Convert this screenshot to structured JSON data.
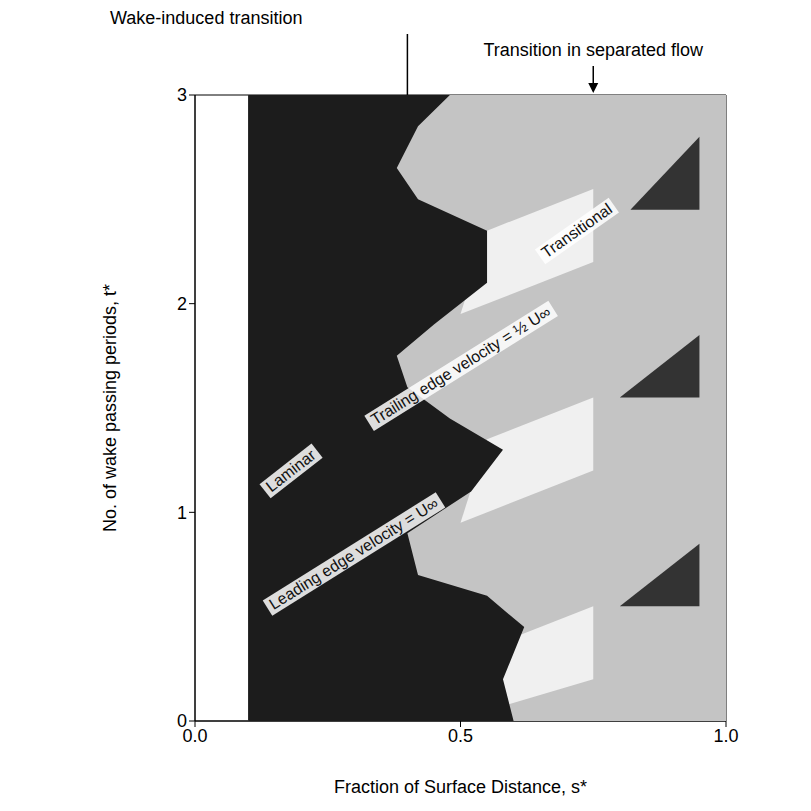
{
  "chart_data": {
    "type": "contour",
    "xlabel": "Fraction of Surface Distance, s*",
    "ylabel": "No. of wake passing periods, t*",
    "xlim": [
      0,
      1
    ],
    "xticks": [
      {
        "value": 0,
        "label": "0.0"
      },
      {
        "value": 0.5,
        "label": "0.5"
      },
      {
        "value": 1,
        "label": "1.0"
      }
    ],
    "ylim": [
      0,
      3
    ],
    "yticks": [
      0,
      1,
      2,
      3
    ],
    "grid": false,
    "markers": [
      {
        "text": "Wake-induced transition",
        "s": 0.4,
        "line_style": "solid"
      },
      {
        "text": "Transition in separated flow",
        "s": 0.75,
        "line_style": "dashed"
      }
    ],
    "annotations": [
      "Laminar",
      "Trailing edge velocity = ½ U∞",
      "Leading edge velocity = U∞",
      "Transitional"
    ],
    "regions": [
      {
        "color": "#c4c4c4",
        "s": [
          0.1,
          1,
          1,
          0.1
        ],
        "t": [
          0,
          0,
          3,
          3
        ]
      },
      {
        "color": "#f0f0f0",
        "s": [
          0.55,
          0.75,
          0.75,
          0.6
        ],
        "t": [
          0.05,
          0.2,
          0.55,
          0.4
        ]
      },
      {
        "color": "#f0f0f0",
        "s": [
          0.5,
          0.75,
          0.75,
          0.55
        ],
        "t": [
          0.95,
          1.2,
          1.55,
          1.35
        ]
      },
      {
        "color": "#f0f0f0",
        "s": [
          0.5,
          0.75,
          0.75,
          0.55
        ],
        "t": [
          1.95,
          2.2,
          2.55,
          2.35
        ]
      },
      {
        "color": "#1c1c1c",
        "s": [
          0.1,
          0.6,
          0.58,
          0.62,
          0.55,
          0.42,
          0.4,
          0.52,
          0.58,
          0.48,
          0.4,
          0.38,
          0.45,
          0.55,
          0.55,
          0.42,
          0.38,
          0.42,
          0.48,
          0.1
        ],
        "t": [
          0,
          0,
          0.2,
          0.45,
          0.6,
          0.7,
          0.9,
          1.1,
          1.3,
          1.45,
          1.6,
          1.75,
          1.9,
          2.1,
          2.35,
          2.5,
          2.65,
          2.85,
          3,
          3
        ]
      },
      {
        "color": "#333333",
        "s": [
          0.8,
          0.95,
          0.95
        ],
        "t": [
          0.55,
          0.55,
          0.85
        ]
      },
      {
        "color": "#333333",
        "s": [
          0.8,
          0.95,
          0.95
        ],
        "t": [
          1.55,
          1.55,
          1.85
        ]
      },
      {
        "color": "#333333",
        "s": [
          0.82,
          0.95,
          0.95
        ],
        "t": [
          2.45,
          2.45,
          2.8
        ]
      }
    ]
  }
}
